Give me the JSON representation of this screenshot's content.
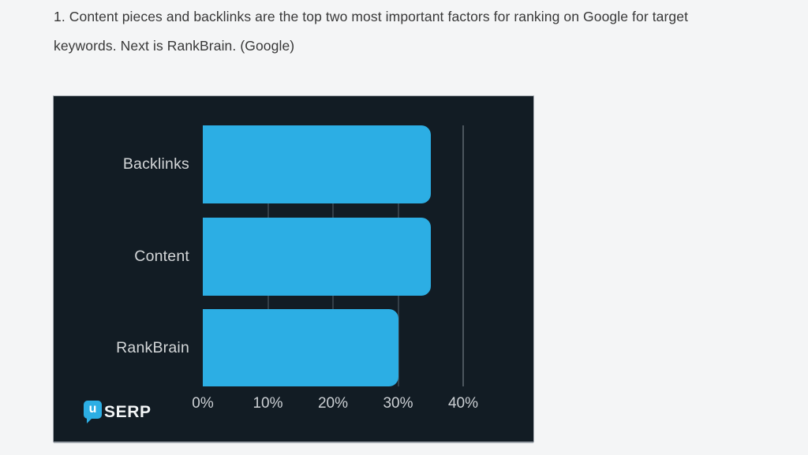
{
  "page": {
    "heading": {
      "lines": [
        "1. Content pieces and backlinks are the top two most important factors for ranking on Google for target",
        "keywords. Next is RankBrain. (Google)"
      ]
    }
  },
  "colors": {
    "page_bg": "#f4f5f6",
    "heading_text": "#383838",
    "chart_bg": "#121c24",
    "bar": "#2caee4",
    "grid": "#343f48",
    "axis_line": "#4c565e",
    "tick_text": "#ccd0d4",
    "label_text": "#d4d7d9",
    "logo_text": "#f2f5f6"
  },
  "logo": {
    "icon_letter": "u",
    "text": "SERP"
  },
  "chart_data": {
    "type": "bar",
    "orientation": "horizontal",
    "title": "",
    "xlabel": "",
    "ylabel": "",
    "categories": [
      "Backlinks",
      "Content",
      "RankBrain"
    ],
    "values": [
      35,
      35,
      30
    ],
    "unit": "%",
    "x_ticks": [
      "0%",
      "10%",
      "20%",
      "30%",
      "40%"
    ],
    "x_tick_values": [
      0,
      10,
      20,
      30,
      40
    ],
    "xlim": [
      0,
      40
    ],
    "gridline_values": [
      10,
      20,
      30,
      40
    ],
    "grid": "vertical-only",
    "legend": "none",
    "bar_color": "#2caee4",
    "background": "#121c24"
  }
}
